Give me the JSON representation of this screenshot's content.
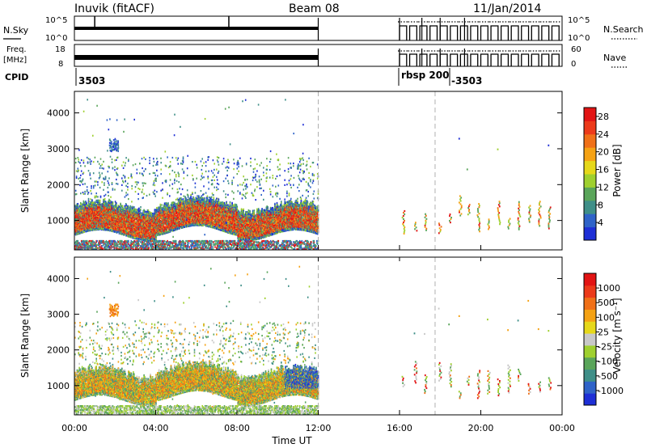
{
  "header": {
    "station": "Inuvik (fitACF)",
    "beam": "Beam 08",
    "date": "11/Jan/2014"
  },
  "top_panels": {
    "nsky_label": "N.Sky",
    "nsky_ticks": [
      "10^5",
      "10^0"
    ],
    "nsearch_label": "N.Search",
    "nsearch_ticks": [
      "10^5",
      "10^0"
    ],
    "freq_label_1": "Freq.",
    "freq_label_2": "[MHz]",
    "freq_ticks": [
      "18",
      "8"
    ],
    "nave_label": "Nave",
    "nave_ticks": [
      "60",
      "0"
    ],
    "cpid_label": "CPID",
    "cpid_values": [
      "3503",
      "rbsp 200",
      "-3503"
    ]
  },
  "time_axis": {
    "label": "Time UT",
    "ticks": [
      "00:00",
      "04:00",
      "08:00",
      "12:00",
      "16:00",
      "20:00",
      "00:00"
    ],
    "range_hours": [
      0,
      24
    ],
    "tick_hours": [
      0,
      4,
      8,
      12,
      16,
      20,
      24
    ]
  },
  "chart_data": [
    {
      "type": "heatmap",
      "ylabel": "Slant Range [km]",
      "yticks": [
        "1000",
        "2000",
        "3000",
        "4000"
      ],
      "ytick_values": [
        1000,
        2000,
        3000,
        4000
      ],
      "ylim": [
        180,
        4600
      ],
      "xlim": [
        0,
        24
      ],
      "colorbar": {
        "label": "Power [dB]",
        "ticks": [
          "4",
          "8",
          "12",
          "16",
          "20",
          "24",
          "28"
        ],
        "tick_values": [
          4,
          8,
          12,
          16,
          20,
          24,
          28
        ],
        "range": [
          0,
          30
        ],
        "colors": [
          "#1e2fd6",
          "#2f63c8",
          "#3f8f88",
          "#5aa55a",
          "#9fd02f",
          "#e6d81a",
          "#f5a214",
          "#f07018",
          "#ec3a1a",
          "#e21414"
        ]
      }
    },
    {
      "type": "heatmap",
      "ylabel": "Slant Range [km]",
      "yticks": [
        "1000",
        "2000",
        "3000",
        "4000"
      ],
      "ytick_values": [
        1000,
        2000,
        3000,
        4000
      ],
      "ylim": [
        180,
        4600
      ],
      "xlim": [
        0,
        24
      ],
      "colorbar": {
        "label": "Velocity [m s⁻¹]",
        "ticks": [
          "1000",
          "500",
          "100",
          "25",
          "-25",
          "-100",
          "-500",
          "-1000"
        ],
        "colors": [
          "#1e2fd6",
          "#2f63c8",
          "#3f8f88",
          "#5aa55a",
          "#9fd02f",
          "#c8c8c8",
          "#e6d81a",
          "#f5a214",
          "#f07018",
          "#ec3a1a",
          "#e21414"
        ]
      }
    }
  ]
}
